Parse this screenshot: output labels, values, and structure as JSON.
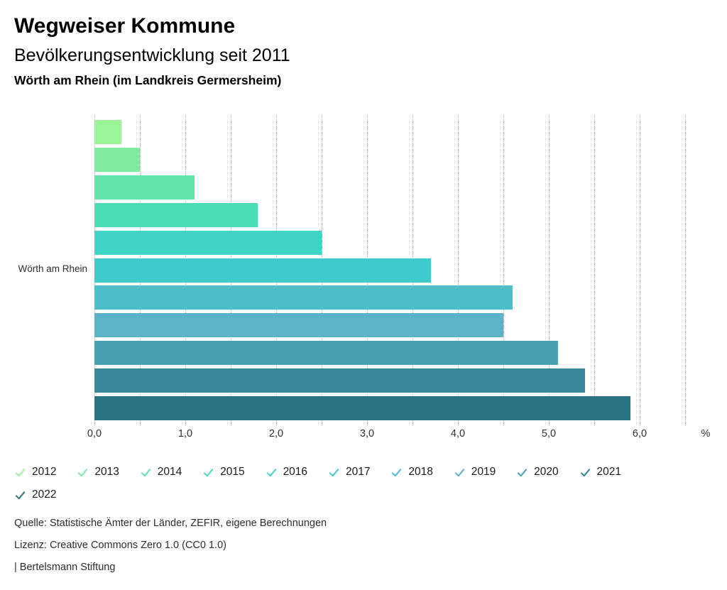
{
  "header": {
    "title": "Wegweiser Kommune",
    "subtitle": "Bevölkerungsentwicklung seit 2011",
    "region_line": "Wörth am Rhein (im Landkreis Germersheim)"
  },
  "chart_data": {
    "type": "bar",
    "orientation": "horizontal",
    "title": "Bevölkerungsentwicklung seit 2011",
    "category_label": "Wörth am Rhein",
    "unit_label": "%",
    "xlim": [
      0,
      6.5
    ],
    "gridline_step": 0.5,
    "grid": true,
    "x_ticks": [
      {
        "value": 0,
        "label": "0,0"
      },
      {
        "value": 1,
        "label": "1,0"
      },
      {
        "value": 2,
        "label": "2,0"
      },
      {
        "value": 3,
        "label": "3,0"
      },
      {
        "value": 4,
        "label": "4,0"
      },
      {
        "value": 5,
        "label": "5,0"
      },
      {
        "value": 6,
        "label": "6,0"
      }
    ],
    "series": [
      {
        "year": "2012",
        "value": 0.3,
        "color": "#9AF599"
      },
      {
        "year": "2013",
        "value": 0.5,
        "color": "#7EEBA1"
      },
      {
        "year": "2014",
        "value": 1.1,
        "color": "#63E4AB"
      },
      {
        "year": "2015",
        "value": 1.8,
        "color": "#49DCB7"
      },
      {
        "year": "2016",
        "value": 2.5,
        "color": "#40D4C6"
      },
      {
        "year": "2017",
        "value": 3.7,
        "color": "#3FCACB"
      },
      {
        "year": "2018",
        "value": 4.6,
        "color": "#4CBDCB"
      },
      {
        "year": "2019",
        "value": 4.5,
        "color": "#5CB2C6"
      },
      {
        "year": "2020",
        "value": 5.1,
        "color": "#4A9FB1"
      },
      {
        "year": "2021",
        "value": 5.4,
        "color": "#388899"
      },
      {
        "year": "2022",
        "value": 5.9,
        "color": "#2A7384"
      }
    ],
    "legend_position": "bottom",
    "legend_items_per_row": 10
  },
  "footer": {
    "source": "Quelle: Statistische Ämter der Länder, ZEFIR, eigene Berechnungen",
    "license": "Lizenz: Creative Commons Zero 1.0 (CC0 1.0)",
    "attribution": "| Bertelsmann Stiftung"
  }
}
